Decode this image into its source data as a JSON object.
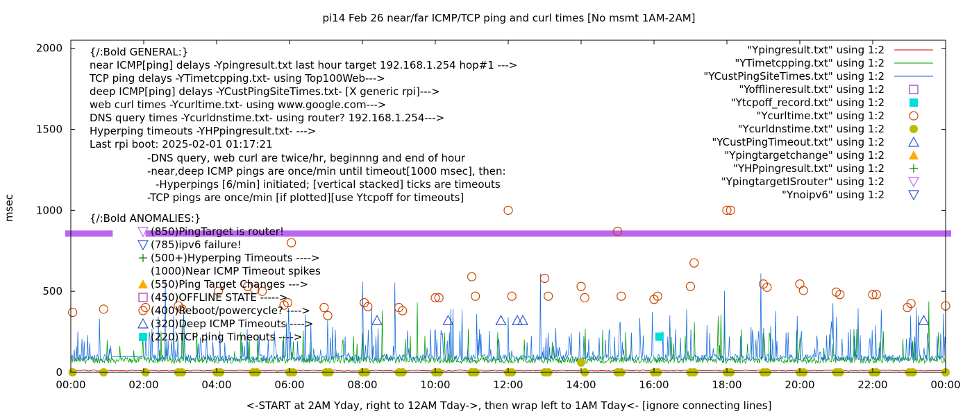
{
  "chart_data": {
    "type": "scatter",
    "title": "pi14 Feb 26  near/far ICMP/TCP ping and curl times [No msmt 1AM-2AM]",
    "ylabel": "msec",
    "xlabel": "<-START at 2AM Yday, right to 12AM Tday->, then wrap left to 1AM Tday<- [ignore connecting lines]",
    "xlim": [
      0,
      24
    ],
    "ylim": [
      0,
      2050
    ],
    "x_ticks": [
      "00:00",
      "02:00",
      "04:00",
      "06:00",
      "08:00",
      "10:00",
      "12:00",
      "14:00",
      "16:00",
      "18:00",
      "20:00",
      "22:00",
      "00:00"
    ],
    "y_ticks": [
      "0",
      "500",
      "1000",
      "1500",
      "2000"
    ],
    "annotations": {
      "general_header": "{/:Bold GENERAL:}",
      "general_lines": [
        "near ICMP[ping] delays -Ypingresult.txt last hour target 192.168.1.254 hop#1 --->",
        "TCP ping delays -YTimetcpping.txt- using Top100Web--->",
        "deep ICMP[ping] delays -YCustPingSiteTimes.txt- [X generic rpi]--->",
        "web curl times -Ycurltime.txt- using www.google.com--->",
        "DNS query times -Ycurldnstime.txt- using router? 192.168.1.254--->",
        "Hyperping timeouts -YHPpingresult.txt- --->",
        "Last rpi boot: 2025-02-01 01:17:21"
      ],
      "notes": [
        "-DNS query, web curl are twice/hr, beginnng and end of hour",
        "-near,deep ICMP pings are once/min until timeout[1000 msec], then:",
        "-Hyperpings [6/min] initiated; [vertical stacked] ticks are timeouts",
        "-TCP pings are once/min [if plotted][use Ytcpoff for timeouts]"
      ],
      "anomalies_header": "{/:Bold ANOMALIES:}",
      "anomalies": [
        "(850)PingTarget is router!",
        "(785)ipv6 failure!",
        "(500+)Hyperping Timeouts ---->",
        "(1000)Near ICMP Timeout spikes",
        "(550)Ping Target Changes --->",
        "(450)OFFLINE STATE ----->",
        "(400)Reboot/powercycle? ---->",
        "(320)Deep ICMP Timeouts ---->",
        "(220)TCP ping Timeouts ---->"
      ]
    },
    "legend_position": "top-right",
    "series": [
      {
        "name": "\"Ypingresult.txt\" using 1:2",
        "style": "line",
        "color": "#cc0000",
        "values": []
      },
      {
        "name": "\"YTimetcpping.txt\" using 1:2",
        "style": "line",
        "color": "#009900",
        "values": []
      },
      {
        "name": "\"YCustPingSiteTimes.txt\" using 1:2",
        "style": "line",
        "color": "#0066dd",
        "values": []
      },
      {
        "name": "\"Yofflineresult.txt\" using 1:2",
        "style": "open-square",
        "color": "#9933cc",
        "values": []
      },
      {
        "name": "\"Ytcpoff_record.txt\" using 1:2",
        "style": "filled-square",
        "color": "#00dddd",
        "x": [
          16.15
        ],
        "values": [
          220
        ]
      },
      {
        "name": "\"Ycurltime.txt\" using 1:2",
        "style": "open-circle",
        "color": "#cc4400",
        "x": [
          0.05,
          0.9,
          2.05,
          2.95,
          3.05,
          4.05,
          4.85,
          5.05,
          5.25,
          5.85,
          5.95,
          6.05,
          6.95,
          7.05,
          8.05,
          8.15,
          9.0,
          9.1,
          10.0,
          10.1,
          11.0,
          11.1,
          12.0,
          12.1,
          13.0,
          13.1,
          14.0,
          14.1,
          15.0,
          15.1,
          16.0,
          16.1,
          17.0,
          17.1,
          18.0,
          18.1,
          19.0,
          19.1,
          20.0,
          20.1,
          21.0,
          21.1,
          22.0,
          22.1,
          22.95,
          23.05,
          24.0
        ],
        "values": [
          370,
          390,
          400,
          410,
          390,
          500,
          530,
          510,
          500,
          415,
          430,
          800,
          400,
          350,
          430,
          405,
          400,
          380,
          460,
          460,
          590,
          470,
          1000,
          470,
          580,
          470,
          530,
          460,
          870,
          470,
          450,
          470,
          530,
          675,
          1000,
          1000,
          545,
          525,
          545,
          505,
          495,
          480,
          480,
          480,
          400,
          425,
          410
        ]
      },
      {
        "name": "\"Ycurldnstime.txt\" using 1:2",
        "style": "filled-circle",
        "color": "#bbbb00",
        "x": [
          0.05,
          0.9,
          2.05,
          2.95,
          3.05,
          4.0,
          4.1,
          5.0,
          5.1,
          6.0,
          6.1,
          7.0,
          7.1,
          8.0,
          8.1,
          9.0,
          9.1,
          10.0,
          10.1,
          11.0,
          11.1,
          12.0,
          12.1,
          13.0,
          13.1,
          14.0,
          14.1,
          15.0,
          15.1,
          16.0,
          16.1,
          17.0,
          17.1,
          18.0,
          18.1,
          19.0,
          19.1,
          20.0,
          20.1,
          21.0,
          21.1,
          22.0,
          22.1,
          23.0,
          23.1,
          24.0
        ],
        "values": [
          0,
          0,
          0,
          0,
          0,
          0,
          0,
          0,
          0,
          0,
          0,
          0,
          0,
          0,
          0,
          0,
          0,
          0,
          0,
          0,
          0,
          0,
          0,
          0,
          0,
          60,
          0,
          0,
          0,
          0,
          0,
          0,
          0,
          0,
          0,
          0,
          0,
          0,
          0,
          0,
          0,
          0,
          0,
          0,
          0,
          0
        ]
      },
      {
        "name": "\"YCustPingTimeout.txt\" using 1:2",
        "style": "open-triangle",
        "color": "#3355cc",
        "x": [
          8.4,
          10.35,
          11.8,
          12.25,
          12.4,
          23.4
        ],
        "values": [
          320,
          320,
          320,
          320,
          320,
          320
        ]
      },
      {
        "name": "\"Ypingtargetchange\" using 1:2",
        "style": "filled-triangle",
        "color": "#ffaa00",
        "values": []
      },
      {
        "name": "\"YHPpingresult.txt\" using 1:2",
        "style": "plus",
        "color": "#007700",
        "values": []
      },
      {
        "name": "\"YpingtargetISrouter\" using 1:2",
        "style": "open-down-triangle",
        "color": "#bb66ee",
        "x_ranges": [
          [
            0,
            1.15
          ],
          [
            2.05,
            24
          ]
        ],
        "values": [
          850
        ]
      },
      {
        "name": "\"Ynoipv6\" using 1:2",
        "style": "open-down-triangle",
        "color": "#3355cc",
        "values": []
      }
    ]
  }
}
